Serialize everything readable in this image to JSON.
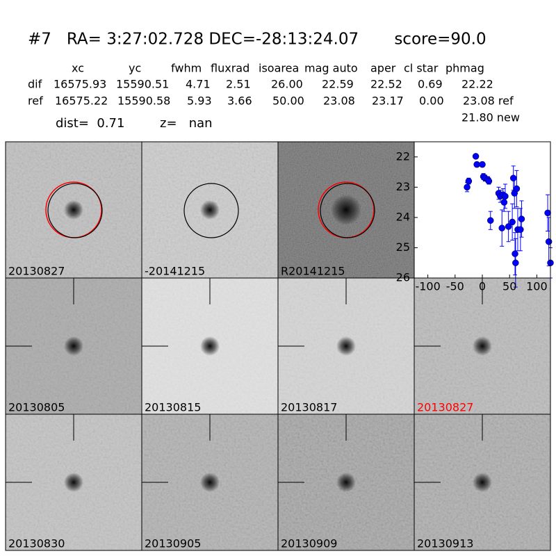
{
  "header": {
    "title": "#7   RA= 3:27:02.728 DEC=-28:13:24.07       score=90.0",
    "columns": [
      "xc",
      "yc",
      "fwhm",
      "fluxrad",
      "isoarea",
      "mag auto",
      "aper",
      "cl star",
      "phmag"
    ],
    "rows": [
      [
        "dif",
        "16575.93",
        "15590.51",
        "4.71",
        "2.51",
        "26.00",
        "22.59",
        "22.52",
        "0.69",
        "22.22"
      ],
      [
        "ref",
        "16575.22",
        "15590.58",
        "5.93",
        "3.66",
        "50.00",
        "23.08",
        "23.17",
        "0.00",
        "23.08 ref"
      ]
    ],
    "extra": "21.80 new",
    "dist": "dist=  0.71",
    "z": "z=   nan"
  },
  "tiles": [
    {
      "label": "20130827",
      "color": "#000000"
    },
    {
      "label": "-20141215",
      "color": "#000000"
    },
    {
      "label": "R20141215",
      "color": "#000000"
    },
    {
      "label": "20130805",
      "color": "#000000"
    },
    {
      "label": "20130815",
      "color": "#000000"
    },
    {
      "label": "20130817",
      "color": "#000000"
    },
    {
      "label": "20130827",
      "color": "#ff0000"
    },
    {
      "label": "20130830",
      "color": "#000000"
    },
    {
      "label": "20130905",
      "color": "#000000"
    },
    {
      "label": "20130909",
      "color": "#000000"
    },
    {
      "label": "20130913",
      "color": "#000000"
    }
  ],
  "chart_data": {
    "type": "scatter",
    "xlim": [
      -125,
      125
    ],
    "ylim": [
      26,
      21.5
    ],
    "xticks": [
      -100,
      -50,
      0,
      50,
      100
    ],
    "yticks": [
      22,
      23,
      24,
      25,
      26
    ],
    "series": [
      {
        "color": "#0000ff",
        "x": [
          -28,
          -25,
          -12,
          -10,
          0,
          2,
          5,
          10,
          12,
          15,
          30,
          33,
          36,
          38,
          40,
          42,
          48,
          55,
          57,
          59,
          60,
          61,
          63,
          65,
          70,
          72,
          120,
          122,
          125
        ],
        "values": [
          23.0,
          22.8,
          21.98,
          22.25,
          22.25,
          22.65,
          22.7,
          22.75,
          22.8,
          24.1,
          23.2,
          23.3,
          24.35,
          23.25,
          23.5,
          23.3,
          24.3,
          24.15,
          22.7,
          23.2,
          25.2,
          25.5,
          23.05,
          24.4,
          24.4,
          24.05,
          23.85,
          24.8,
          25.5
        ],
        "errors": [
          0.15,
          0.1,
          0.05,
          0.08,
          0.08,
          0.1,
          0.1,
          0.1,
          0.1,
          0.3,
          0.2,
          0.2,
          0.6,
          0.2,
          0.3,
          0.4,
          0.5,
          0.6,
          0.4,
          0.5,
          0.7,
          0.8,
          0.6,
          0.7,
          0.7,
          0.6,
          0.6,
          0.8,
          0.5
        ]
      }
    ]
  }
}
